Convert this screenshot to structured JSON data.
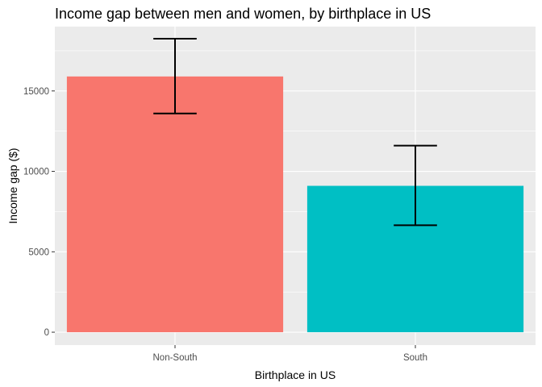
{
  "chart_data": {
    "type": "bar",
    "title": "Income gap between men and women, by birthplace in US",
    "xlabel": "Birthplace in US",
    "ylabel": "Income gap ($)",
    "categories": [
      "Non-South",
      "South"
    ],
    "values": [
      15900,
      9100
    ],
    "error_low": [
      13600,
      6650
    ],
    "error_high": [
      18250,
      11600
    ],
    "colors": [
      "#f8766d",
      "#00bfc4"
    ],
    "ylim": [
      -800,
      19000
    ],
    "yticks": [
      0,
      5000,
      10000,
      15000
    ],
    "ytick_labels": [
      "0",
      "5000",
      "10000",
      "15000"
    ],
    "grid": true,
    "panel_background": "#ebebeb",
    "legend": "none"
  }
}
